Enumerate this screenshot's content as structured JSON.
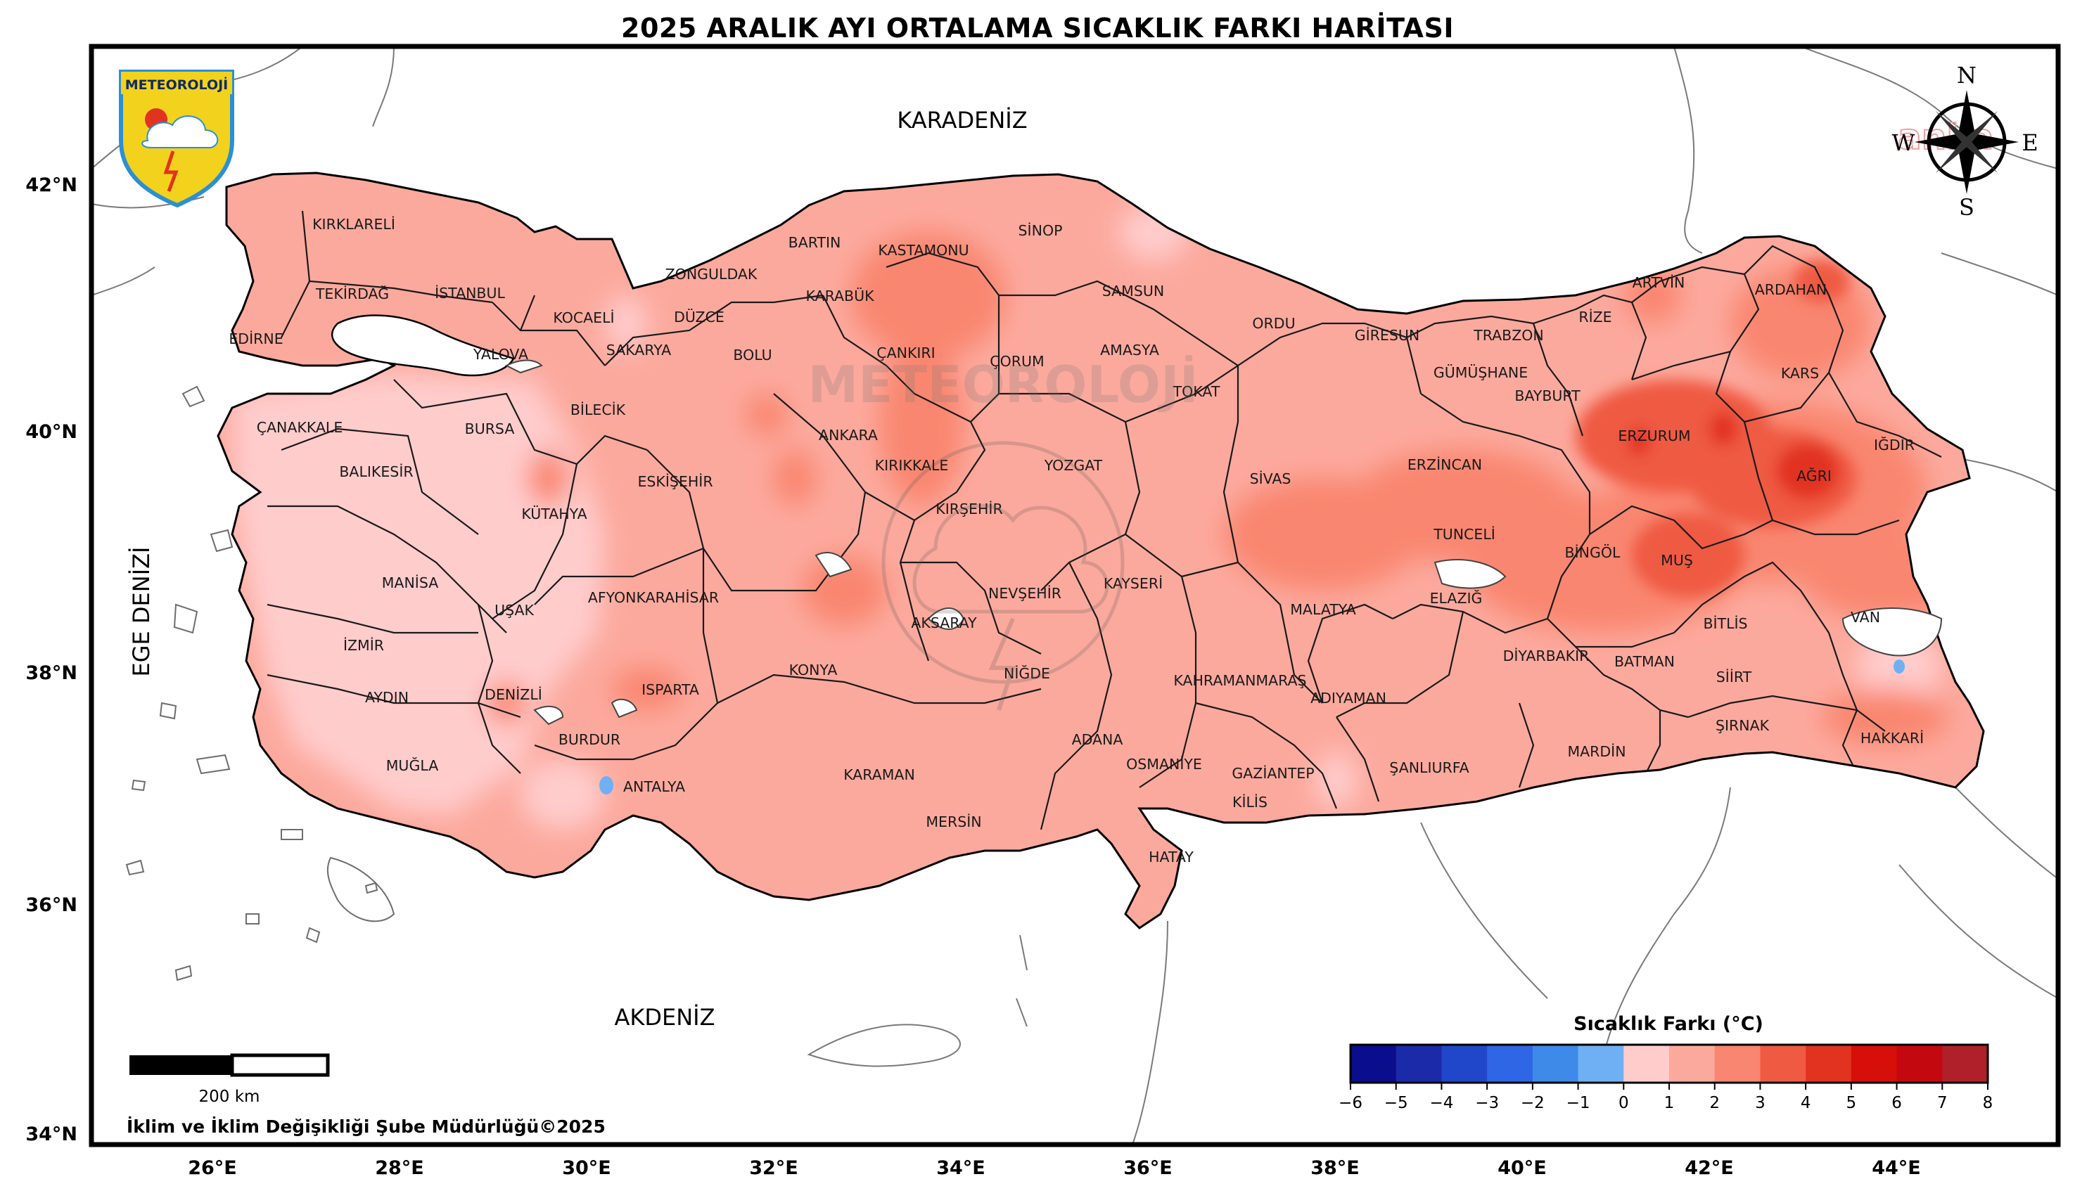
{
  "title": "2025 ARALIK AYI ORTALAMA SICAKLIK FARKI HARİTASI",
  "logo_text": "METEOROLOJİ",
  "watermark_text": "METEOROLOJİ",
  "seas": {
    "north": "KARADENİZ",
    "south": "AKDENİZ",
    "west": "EGE DENİZİ"
  },
  "compass": {
    "n": "N",
    "s": "S",
    "e": "E",
    "w": "W"
  },
  "corner_stamp": "anka",
  "scale_bar_label": "200 km",
  "credit": "İklim ve İklim Değişikliği Şube Müdürlüğü©2025",
  "axes": {
    "lat_labels": [
      "42°N",
      "40°N",
      "38°N",
      "36°N",
      "34°N"
    ],
    "lon_labels": [
      "26°E",
      "28°E",
      "30°E",
      "32°E",
      "34°E",
      "36°E",
      "38°E",
      "40°E",
      "42°E",
      "44°E"
    ]
  },
  "colorbar": {
    "title": "Sıcaklık Farkı (°C)",
    "ticks": [
      "−6",
      "−5",
      "−4",
      "−3",
      "−2",
      "−1",
      "0",
      "1",
      "2",
      "3",
      "4",
      "5",
      "6",
      "7",
      "8"
    ],
    "colors": [
      "#0a0d8c",
      "#1a2aa8",
      "#2047c9",
      "#2f66e6",
      "#3d8ae8",
      "#6fb0f5",
      "#ffcccc",
      "#fca99d",
      "#f98670",
      "#ef5a43",
      "#e23320",
      "#d60f0b",
      "#c4080f",
      "#b0202a"
    ]
  },
  "provinces": [
    "KIRKLARELİ",
    "TEKİRDAĞ",
    "EDİRNE",
    "İSTANBUL",
    "KOCAELİ",
    "YALOVA",
    "SAKARYA",
    "DÜZCE",
    "ZONGULDAK",
    "BARTIN",
    "KARABÜK",
    "KASTAMONU",
    "SİNOP",
    "SAMSUN",
    "ORDU",
    "GİRESUN",
    "TRABZON",
    "RİZE",
    "ARTVİN",
    "ARDAHAN",
    "KARS",
    "IĞDIR",
    "AĞRI",
    "ERZURUM",
    "BAYBURT",
    "GÜMÜŞHANE",
    "ERZİNCAN",
    "TUNCELİ",
    "BİNGÖL",
    "MUŞ",
    "BİTLİS",
    "VAN",
    "HAKKARİ",
    "ŞIRNAK",
    "SİİRT",
    "BATMAN",
    "MARDİN",
    "DİYARBAKIR",
    "ELAZIĞ",
    "MALATYA",
    "ADIYAMAN",
    "ŞANLIURFA",
    "GAZİANTEP",
    "KİLİS",
    "HATAY",
    "OSMANİYE",
    "ADANA",
    "MERSİN",
    "KARAMAN",
    "KONYA",
    "NİĞDE",
    "AKSARAY",
    "NEVŞEHİR",
    "KAYSERİ",
    "KAHRAMANMARAŞ",
    "SİVAS",
    "TOKAT",
    "AMASYA",
    "ÇORUM",
    "YOZGAT",
    "KIRŞEHİR",
    "KIRIKKALE",
    "ANKARA",
    "ÇANKIRI",
    "BOLU",
    "BİLECİK",
    "ESKİŞEHİR",
    "KÜTAHYA",
    "BURSA",
    "BALIKESİR",
    "ÇANAKKALE",
    "MANİSA",
    "İZMİR",
    "AYDIN",
    "MUĞLA",
    "DENİZLİ",
    "UŞAK",
    "AFYONKARAHİSAR",
    "ISPARTA",
    "BURDUR",
    "ANTALYA"
  ],
  "colors": {
    "frame": "#000000",
    "sea": "#ffffff",
    "base_anomaly": "#fca99d",
    "light_anomaly": "#ffcccc",
    "mid_anomaly": "#f98670",
    "strong_anomaly": "#ef5a43",
    "cold_spot": "#6fb0f5",
    "logo_yellow": "#f2d21c",
    "logo_blue": "#2a8fd6"
  }
}
